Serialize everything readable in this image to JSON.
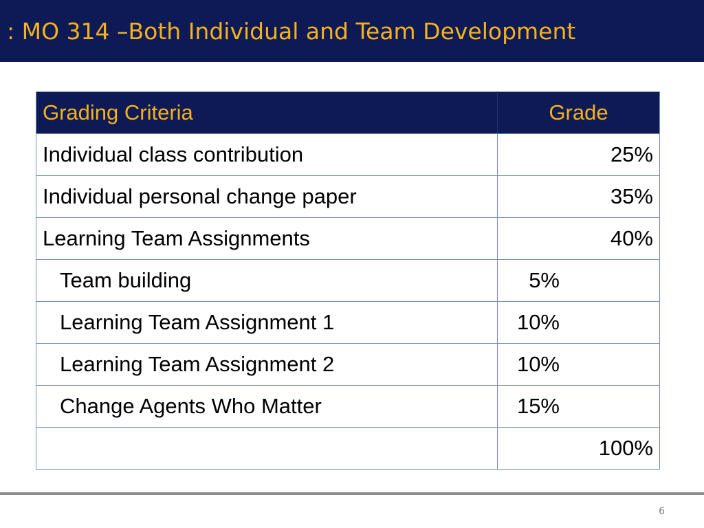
{
  "slide": {
    "title": ": MO 314 –Both Individual and Team Development",
    "page_number": "6"
  },
  "table": {
    "headers": {
      "criteria": "Grading Criteria",
      "grade": "Grade"
    },
    "rows": [
      {
        "criteria": "Individual class contribution",
        "grade": "25%"
      },
      {
        "criteria": "Individual personal change paper",
        "grade": "35%"
      },
      {
        "criteria": "Learning Team Assignments",
        "grade": "40%"
      },
      {
        "criteria": "Team building",
        "grade": "5%"
      },
      {
        "criteria": "Learning Team Assignment 1",
        "grade": "10%"
      },
      {
        "criteria": "Learning Team Assignment 2",
        "grade": "10%"
      },
      {
        "criteria": "Change Agents Who Matter",
        "grade": "15%"
      },
      {
        "criteria": "",
        "grade": "100%"
      }
    ]
  },
  "colors": {
    "title_background": "#0d1a56",
    "title_text": "#f5b21a",
    "table_border": "#6f8fbf",
    "footer_rule": "#8c8c8c"
  }
}
